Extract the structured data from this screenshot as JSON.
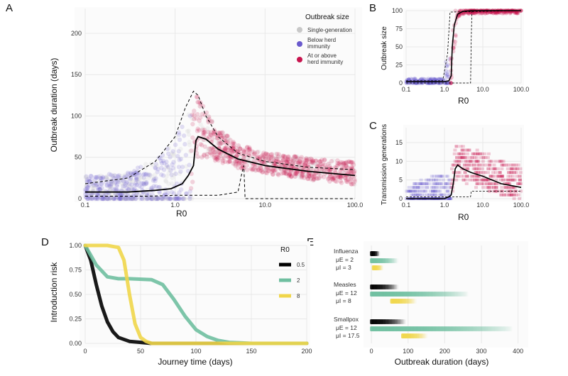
{
  "panel_letters": [
    "A",
    "B",
    "C",
    "D",
    "E"
  ],
  "colors": {
    "single": "#c8c8c8",
    "below": "#6a5acd",
    "above": "#c8144e",
    "r05": "#000000",
    "r2": "#6fbfa0",
    "r8": "#f0d64a",
    "grid": "#e8e8e8"
  },
  "chart_data": [
    {
      "id": "A",
      "type": "area",
      "xlabel": "R0",
      "ylabel": "Outbreak duration (days)",
      "x_scale": "log",
      "xlim": [
        0.1,
        100
      ],
      "ylim": [
        0,
        230
      ],
      "x_ticks": [
        "0.1",
        "1.0",
        "10.0",
        "100.0"
      ],
      "y_ticks": [
        "0",
        "50",
        "100",
        "150",
        "200"
      ],
      "legend_title": "Outbreak size",
      "legend": [
        "Single-generation",
        "Below herd immunity",
        "At or above herd immunity"
      ],
      "median": {
        "x": [
          0.1,
          0.3,
          0.6,
          0.9,
          1.2,
          1.4,
          1.6,
          1.7,
          1.8,
          2.2,
          3,
          5,
          10,
          30,
          100
        ],
        "y": [
          8,
          8,
          10,
          12,
          18,
          28,
          40,
          70,
          75,
          72,
          60,
          48,
          40,
          33,
          28
        ]
      },
      "upper_band": {
        "x": [
          0.1,
          0.3,
          0.6,
          1.0,
          1.3,
          1.6,
          1.8,
          2.2,
          3,
          5,
          10,
          30,
          100
        ],
        "y": [
          18,
          25,
          45,
          75,
          110,
          130,
          125,
          100,
          75,
          55,
          45,
          38,
          35
        ]
      },
      "lower_band": {
        "x": [
          0.1,
          0.5,
          1.0,
          2,
          3,
          5,
          5.5,
          5.8,
          6,
          10,
          100
        ],
        "y": [
          3,
          3,
          4,
          4,
          4,
          8,
          30,
          40,
          0,
          0,
          0
        ]
      }
    },
    {
      "id": "B",
      "type": "line",
      "xlabel": "R0",
      "ylabel": "Outbreak size",
      "x_scale": "log",
      "xlim": [
        0.1,
        100
      ],
      "ylim": [
        0,
        100
      ],
      "x_ticks": [
        "0.1",
        "1.0",
        "10.0",
        "100.0"
      ],
      "y_ticks": [
        "0",
        "25",
        "50",
        "75",
        "100"
      ],
      "median": {
        "x": [
          0.1,
          0.5,
          1.0,
          1.3,
          1.5,
          1.6,
          1.8,
          2.2,
          3,
          5,
          100
        ],
        "y": [
          2,
          2,
          2,
          3,
          10,
          50,
          80,
          95,
          99,
          100,
          100
        ]
      }
    },
    {
      "id": "C",
      "type": "line",
      "xlabel": "R0",
      "ylabel": "Transmission generations",
      "x_scale": "log",
      "xlim": [
        0.1,
        100
      ],
      "ylim": [
        0,
        19
      ],
      "x_ticks": [
        "0.1",
        "1.0",
        "10.0",
        "100.0"
      ],
      "y_ticks": [
        "0",
        "5",
        "10",
        "15"
      ],
      "median": {
        "x": [
          0.1,
          0.5,
          1.0,
          1.3,
          1.5,
          1.7,
          1.9,
          2.2,
          3,
          5,
          10,
          30,
          100
        ],
        "y": [
          0,
          0,
          0,
          0.5,
          1,
          4,
          8,
          9,
          8,
          7,
          6,
          4,
          3
        ]
      }
    },
    {
      "id": "D",
      "type": "line",
      "xlabel": "Journey time (days)",
      "ylabel": "Introduction risk",
      "xlim": [
        0,
        200
      ],
      "ylim": [
        0,
        1
      ],
      "x_ticks": [
        "0",
        "50",
        "100",
        "150",
        "200"
      ],
      "y_ticks": [
        "0.00",
        "0.25",
        "0.50",
        "0.75",
        "1.00"
      ],
      "legend_title": "R0",
      "series": [
        {
          "name": "0.5",
          "x": [
            0,
            5,
            10,
            15,
            20,
            25,
            30,
            40,
            50,
            60,
            200
          ],
          "y": [
            1.0,
            0.85,
            0.6,
            0.38,
            0.22,
            0.12,
            0.06,
            0.02,
            0.01,
            0.0,
            0.0
          ]
        },
        {
          "name": "2",
          "x": [
            0,
            10,
            20,
            30,
            40,
            60,
            70,
            80,
            90,
            100,
            110,
            120,
            130,
            140,
            150,
            200
          ],
          "y": [
            1.0,
            0.8,
            0.68,
            0.66,
            0.66,
            0.65,
            0.6,
            0.45,
            0.28,
            0.14,
            0.07,
            0.03,
            0.01,
            0.005,
            0.0,
            0.0
          ]
        },
        {
          "name": "8",
          "x": [
            0,
            20,
            30,
            35,
            40,
            45,
            50,
            55,
            60,
            200
          ],
          "y": [
            1.0,
            1.0,
            0.98,
            0.85,
            0.5,
            0.2,
            0.06,
            0.02,
            0.0,
            0.0
          ]
        }
      ]
    },
    {
      "id": "E",
      "type": "bar",
      "xlabel": "Outbreak duration (days)",
      "xlim": [
        -10,
        420
      ],
      "x_ticks": [
        "0",
        "100",
        "200",
        "300",
        "400"
      ],
      "groups": [
        {
          "name": "Influenza",
          "mu_e": "μE = 2",
          "mu_i": "μI = 3",
          "bands": [
            {
              "r": "0.5",
              "from": 0,
              "to": 20
            },
            {
              "r": "2",
              "from": 0,
              "to": 70
            },
            {
              "r": "8",
              "from": 5,
              "to": 30
            }
          ]
        },
        {
          "name": "Measles",
          "mu_e": "μE = 12",
          "mu_i": "μI = 8",
          "bands": [
            {
              "r": "0.5",
              "from": 0,
              "to": 70
            },
            {
              "r": "2",
              "from": 0,
              "to": 260
            },
            {
              "r": "8",
              "from": 55,
              "to": 120
            }
          ]
        },
        {
          "name": "Smallpox",
          "mu_e": "μE = 12",
          "mu_i": "μI = 17.5",
          "bands": [
            {
              "r": "0.5",
              "from": 0,
              "to": 90
            },
            {
              "r": "2",
              "from": 0,
              "to": 380
            },
            {
              "r": "8",
              "from": 85,
              "to": 150
            }
          ]
        }
      ]
    }
  ]
}
